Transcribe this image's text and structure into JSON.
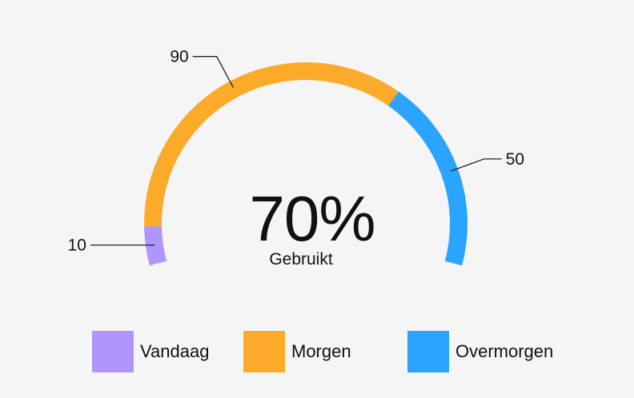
{
  "chart_data": {
    "type": "gauge",
    "center_value": "70%",
    "center_label": "Gebruikt",
    "series": [
      {
        "name": "Vandaag",
        "value": 10,
        "color": "#b095fc"
      },
      {
        "name": "Morgen",
        "value": 90,
        "color": "#fbab29"
      },
      {
        "name": "Overmorgen",
        "value": 50,
        "color": "#2aa4fd"
      }
    ],
    "data_labels": [
      "10",
      "90",
      "50"
    ]
  }
}
